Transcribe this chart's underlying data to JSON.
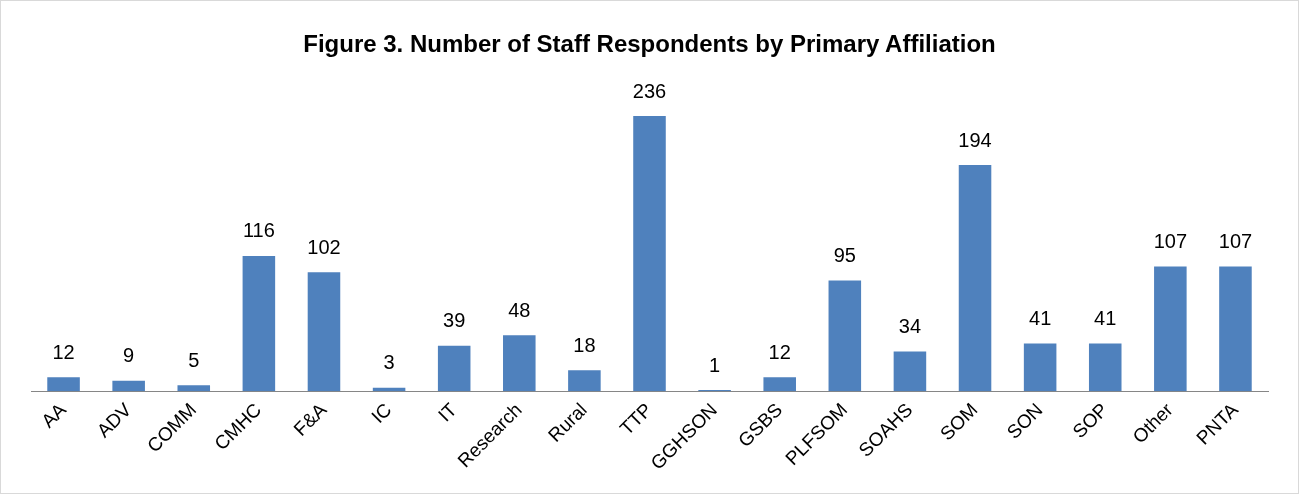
{
  "chart_data": {
    "type": "bar",
    "title": "Figure 3. Number of Staff Respondents by Primary Affiliation",
    "categories": [
      "AA",
      "ADV",
      "COMM",
      "CMHC",
      "F&A",
      "IC",
      "IT",
      "Research",
      "Rural",
      "TTP",
      "GGHSON",
      "GSBS",
      "PLFSOM",
      "SOAHS",
      "SOM",
      "SON",
      "SOP",
      "Other",
      "PNTA"
    ],
    "values": [
      12,
      9,
      5,
      116,
      102,
      3,
      39,
      48,
      18,
      236,
      1,
      12,
      95,
      34,
      194,
      41,
      41,
      107,
      107
    ],
    "color": "#4f81bd",
    "data_labels": true,
    "grid": false,
    "legend": false
  }
}
